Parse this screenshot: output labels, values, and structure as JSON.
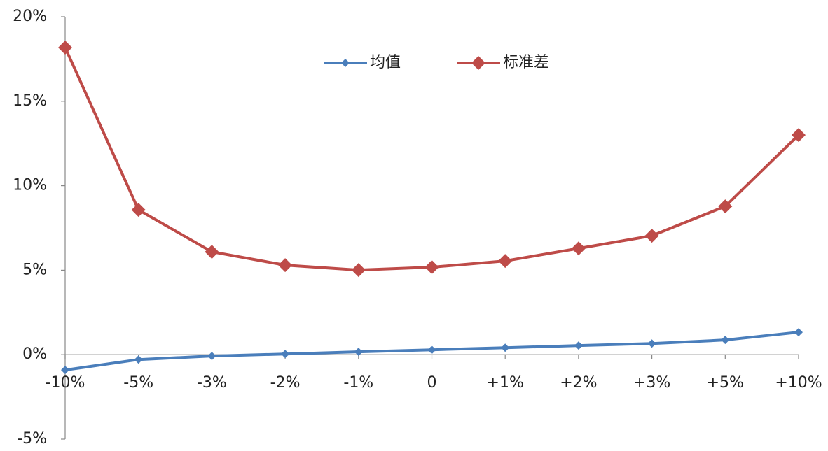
{
  "chart_data": {
    "type": "line",
    "categories": [
      "-10%",
      "-5%",
      "-3%",
      "-2%",
      "-1%",
      "0",
      "+1%",
      "+2%",
      "+3%",
      "+5%",
      "+10%"
    ],
    "series": [
      {
        "name": "均值",
        "color": "#4a7ebb",
        "values": [
          -0.91,
          -0.29,
          -0.08,
          0.04,
          0.17,
          0.29,
          0.41,
          0.54,
          0.66,
          0.87,
          1.33
        ]
      },
      {
        "name": "标准差",
        "color": "#be4b48",
        "values": [
          18.18,
          8.57,
          6.09,
          5.3,
          5.01,
          5.18,
          5.55,
          6.29,
          7.04,
          8.78,
          13.0
        ]
      }
    ],
    "ylim": [
      -5,
      20
    ],
    "yticks": [
      {
        "value": -5,
        "label": "-5%"
      },
      {
        "value": 0,
        "label": "0%"
      },
      {
        "value": 5,
        "label": "5%"
      },
      {
        "value": 10,
        "label": "10%"
      },
      {
        "value": 15,
        "label": "15%"
      },
      {
        "value": 20,
        "label": "20%"
      }
    ],
    "legend": "top"
  }
}
